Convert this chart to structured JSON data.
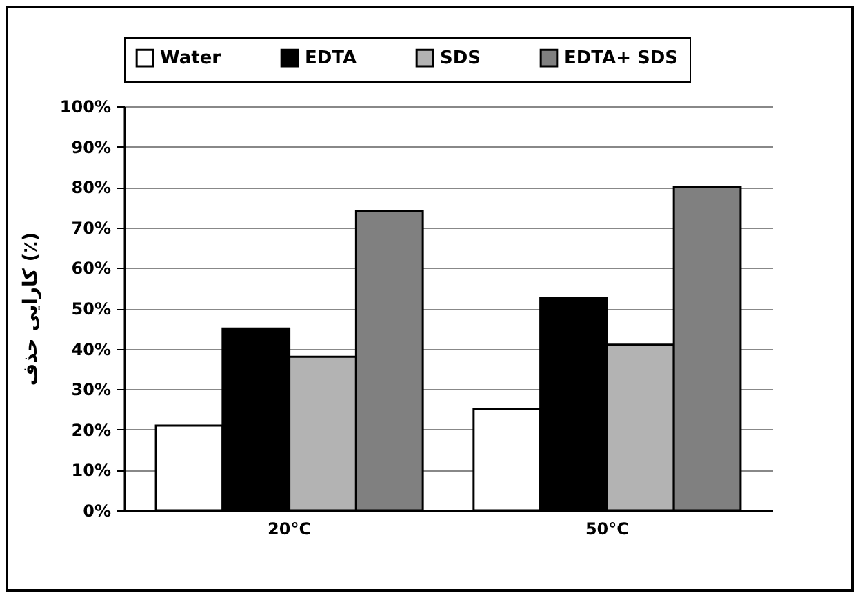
{
  "chart_data": {
    "type": "bar",
    "ylabel": "کارایی حذف (٪)",
    "categories": [
      "20°C",
      "50°C"
    ],
    "series": [
      {
        "name": "Water",
        "color": "#ffffff",
        "values": [
          21,
          25
        ]
      },
      {
        "name": "EDTA",
        "color": "#000000",
        "values": [
          45,
          52.5
        ]
      },
      {
        "name": "SDS",
        "color": "#b3b3b3",
        "values": [
          38,
          41
        ]
      },
      {
        "name": "EDTA+ SDS",
        "color": "#808080",
        "values": [
          74,
          80
        ]
      }
    ],
    "ylim": [
      0,
      100
    ],
    "yticks": [
      {
        "value": 0,
        "label": "0%"
      },
      {
        "value": 10,
        "label": "10%"
      },
      {
        "value": 20,
        "label": "20%"
      },
      {
        "value": 30,
        "label": "30%"
      },
      {
        "value": 40,
        "label": "40%"
      },
      {
        "value": 50,
        "label": "50%"
      },
      {
        "value": 60,
        "label": "60%"
      },
      {
        "value": 70,
        "label": "70%"
      },
      {
        "value": 80,
        "label": "80%"
      },
      {
        "value": 90,
        "label": "90%"
      },
      {
        "value": 100,
        "label": "100%"
      }
    ],
    "grid": "y",
    "legend": "top"
  }
}
